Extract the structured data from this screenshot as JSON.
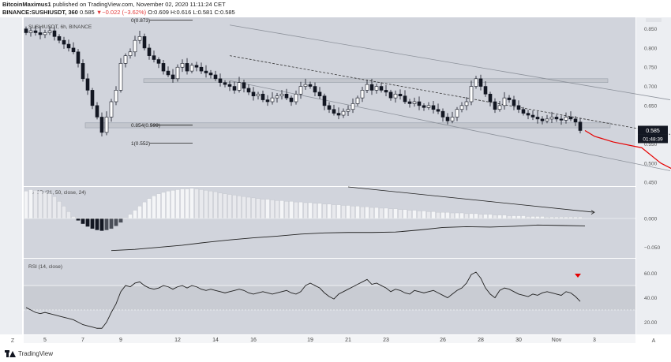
{
  "header": {
    "author": "BitcoinMaximus1",
    "published": "published on TradingView.com, November 02, 2020 11:11:24 CET",
    "symbol": "BINANCE:SUSHIUSDT, 360",
    "last": "0.585",
    "change": "−0.022 (−3.62%)",
    "ohlc": "O:0.609  H:0.616  L:0.581  C:0.585"
  },
  "footer": {
    "brand": "TradingView"
  },
  "colors": {
    "bg": "#d1d4dc",
    "up": "#ffffff",
    "down": "#131722",
    "projection": "#e60000",
    "marker": "#e60000"
  },
  "chart_data": [
    {
      "type": "candlestick",
      "title": "SUSHIUSDT, 6h, BINANCE",
      "price_axis_ticks": [
        "0.850",
        "0.800",
        "0.750",
        "0.700",
        "0.650",
        "0.550",
        "0.500",
        "0.450"
      ],
      "ylim": [
        0.44,
        0.88
      ],
      "time_axis_ticks": [
        {
          "label": "5",
          "index": 4
        },
        {
          "label": "7",
          "index": 12
        },
        {
          "label": "9",
          "index": 20
        },
        {
          "label": "12",
          "index": 32
        },
        {
          "label": "14",
          "index": 40
        },
        {
          "label": "16",
          "index": 48
        },
        {
          "label": "19",
          "index": 60
        },
        {
          "label": "21",
          "index": 68
        },
        {
          "label": "23",
          "index": 76
        },
        {
          "label": "26",
          "index": 88
        },
        {
          "label": "28",
          "index": 96
        },
        {
          "label": "30",
          "index": 104
        },
        {
          "label": "Nov",
          "index": 112
        },
        {
          "label": "3",
          "index": 120
        }
      ],
      "current_price": "0.585",
      "countdown": "01:48:39",
      "close": [
        0.84,
        0.845,
        0.84,
        0.835,
        0.84,
        0.845,
        0.83,
        0.82,
        0.81,
        0.8,
        0.79,
        0.76,
        0.72,
        0.69,
        0.65,
        0.62,
        0.58,
        0.62,
        0.66,
        0.69,
        0.76,
        0.78,
        0.79,
        0.82,
        0.83,
        0.8,
        0.78,
        0.77,
        0.76,
        0.74,
        0.73,
        0.72,
        0.75,
        0.76,
        0.74,
        0.755,
        0.75,
        0.74,
        0.735,
        0.73,
        0.72,
        0.71,
        0.705,
        0.7,
        0.69,
        0.71,
        0.695,
        0.685,
        0.675,
        0.68,
        0.665,
        0.66,
        0.67,
        0.675,
        0.68,
        0.67,
        0.66,
        0.68,
        0.7,
        0.705,
        0.7,
        0.685,
        0.675,
        0.65,
        0.64,
        0.63,
        0.625,
        0.635,
        0.64,
        0.655,
        0.67,
        0.69,
        0.705,
        0.69,
        0.7,
        0.69,
        0.685,
        0.67,
        0.68,
        0.675,
        0.66,
        0.655,
        0.66,
        0.65,
        0.645,
        0.65,
        0.64,
        0.635,
        0.62,
        0.61,
        0.62,
        0.64,
        0.65,
        0.66,
        0.7,
        0.72,
        0.7,
        0.68,
        0.66,
        0.64,
        0.65,
        0.67,
        0.665,
        0.65,
        0.64,
        0.63,
        0.625,
        0.62,
        0.615,
        0.61,
        0.615,
        0.62,
        0.615,
        0.612,
        0.62,
        0.615,
        0.607,
        0.585
      ],
      "channel": {
        "upper": {
          "from": {
            "index": 43,
            "price": 0.86
          },
          "to": {
            "index": 136,
            "price": 0.665
          }
        },
        "lower": {
          "from": {
            "index": 43,
            "price": 0.715
          },
          "to": {
            "index": 136,
            "price": 0.48
          }
        },
        "mid_dashed": {
          "from": {
            "index": 43,
            "price": 0.78
          },
          "to": {
            "index": 136,
            "price": 0.575
          }
        }
      },
      "resistance_zone": [
        0.71,
        0.72
      ],
      "support_zone": [
        0.592,
        0.605
      ],
      "fib_levels": [
        {
          "label": "0(0.873)",
          "price": 0.873
        },
        {
          "label": "0.854(0.599)",
          "price": 0.599
        },
        {
          "label": "1(0.552)",
          "price": 0.552
        }
      ],
      "projection": [
        [
          0.585,
          118
        ],
        [
          0.57,
          120
        ],
        [
          0.555,
          124
        ],
        [
          0.54,
          130
        ],
        [
          0.5,
          134
        ],
        [
          0.475,
          138
        ]
      ]
    },
    {
      "type": "histogram",
      "title": "MACD (21, 50, close, 24)",
      "axis_ticks": [
        "0.000",
        "−0.050"
      ],
      "zero_line": 0,
      "histogram": [
        0.04,
        0.042,
        0.041,
        0.04,
        0.038,
        0.036,
        0.032,
        0.025,
        0.018,
        0.01,
        0.003,
        -0.003,
        -0.008,
        -0.012,
        -0.015,
        -0.017,
        -0.018,
        -0.017,
        -0.015,
        -0.011,
        -0.006,
        0.0,
        0.006,
        0.012,
        0.018,
        0.024,
        0.029,
        0.033,
        0.036,
        0.038,
        0.04,
        0.041,
        0.042,
        0.043,
        0.043,
        0.044,
        0.043,
        0.042,
        0.041,
        0.04,
        0.039,
        0.037,
        0.036,
        0.035,
        0.034,
        0.033,
        0.032,
        0.031,
        0.03,
        0.029,
        0.028,
        0.028,
        0.027,
        0.026,
        0.026,
        0.025,
        0.025,
        0.024,
        0.024,
        0.023,
        0.023,
        0.022,
        0.022,
        0.021,
        0.021,
        0.02,
        0.02,
        0.019,
        0.019,
        0.018,
        0.018,
        0.017,
        0.017,
        0.016,
        0.016,
        0.015,
        0.015,
        0.014,
        0.014,
        0.013,
        0.013,
        0.012,
        0.012,
        0.011,
        0.011,
        0.01,
        0.01,
        0.009,
        0.009,
        0.009,
        0.008,
        0.008,
        0.008,
        0.007,
        0.007,
        0.007,
        0.006,
        0.006,
        0.006,
        0.005,
        0.005,
        0.005,
        0.004,
        0.004,
        0.004,
        0.004,
        0.003,
        0.003,
        0.003,
        0.003,
        0.002,
        0.002,
        0.002,
        0.002,
        0.002,
        0.002,
        0.002,
        0.002
      ],
      "macd_line": [
        [
          95,
          -0.078
        ],
        [
          100,
          -0.075
        ],
        [
          105,
          -0.07
        ],
        [
          110,
          -0.065
        ],
        [
          115,
          -0.058
        ],
        [
          120,
          -0.052
        ],
        [
          125,
          -0.047
        ],
        [
          130,
          -0.043
        ],
        [
          135,
          -0.038
        ],
        [
          140,
          -0.035
        ],
        [
          145,
          -0.034
        ],
        [
          150,
          -0.034
        ],
        [
          155,
          -0.033
        ],
        [
          160,
          -0.028
        ],
        [
          165,
          -0.022
        ],
        [
          170,
          -0.02
        ],
        [
          175,
          -0.021
        ],
        [
          180,
          -0.019
        ],
        [
          185,
          -0.016
        ],
        [
          190,
          -0.017
        ],
        [
          195,
          -0.018
        ]
      ],
      "trendline": {
        "from": {
          "index": 68,
          "value": 0.046
        },
        "to": {
          "index": 120,
          "value": 0.009
        }
      }
    },
    {
      "type": "line",
      "title": "RSI (14, close)",
      "axis_ticks": [
        "60.00",
        "40.00",
        "20.00"
      ],
      "ylim": [
        10,
        72
      ],
      "bands": [
        30,
        50
      ],
      "values": [
        32,
        30,
        28,
        27,
        28,
        27,
        26,
        25,
        24,
        23,
        22,
        20,
        18,
        17,
        16,
        15,
        15,
        20,
        28,
        35,
        45,
        50,
        49,
        52,
        53,
        50,
        48,
        47,
        48,
        50,
        49,
        47,
        49,
        50,
        48,
        50,
        49,
        47,
        46,
        47,
        46,
        45,
        44,
        45,
        46,
        47,
        46,
        44,
        43,
        44,
        45,
        44,
        43,
        44,
        45,
        46,
        44,
        43,
        45,
        50,
        52,
        50,
        48,
        44,
        41,
        39,
        43,
        45,
        47,
        49,
        51,
        53,
        55,
        51,
        52,
        50,
        48,
        45,
        47,
        46,
        44,
        43,
        46,
        45,
        44,
        45,
        46,
        44,
        42,
        40,
        43,
        46,
        48,
        52,
        59,
        61,
        56,
        48,
        43,
        40,
        46,
        48,
        47,
        45,
        43,
        42,
        41,
        43,
        42,
        44,
        45,
        44,
        43,
        42,
        45,
        44,
        41,
        37
      ]
    }
  ]
}
